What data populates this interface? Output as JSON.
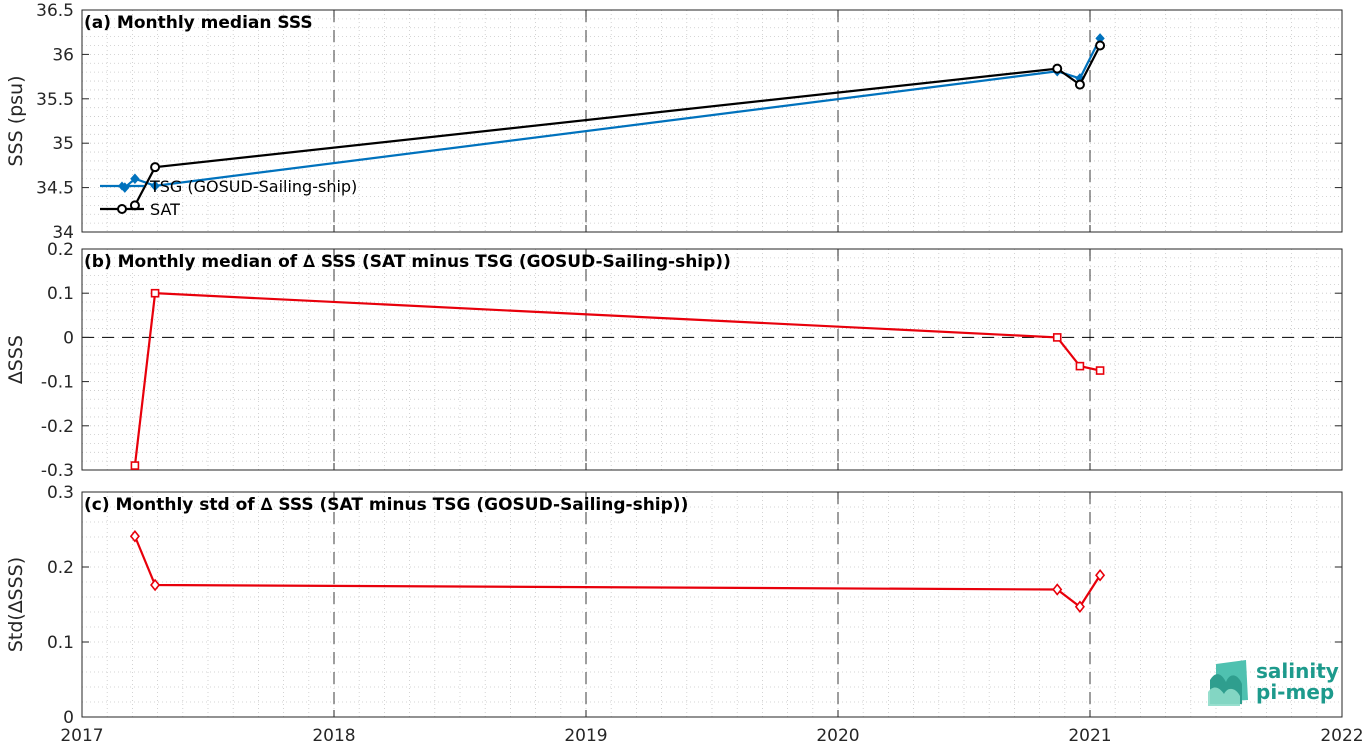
{
  "chart_data": [
    {
      "type": "line",
      "title": "(a) Monthly median SSS",
      "ylabel": "SSS (psu)",
      "xlim": [
        2017,
        2022
      ],
      "ylim": [
        34,
        36.5
      ],
      "yticks": [
        34,
        34.5,
        35,
        35.5,
        36,
        36.5
      ],
      "ytick_labels": [
        "34",
        "34.5",
        "35",
        "35.5",
        "36",
        "36.5"
      ],
      "grid": true,
      "legend": "middle-left",
      "series": [
        {
          "name": "TSG (GOSUD-Sailing-ship)",
          "color": "#0072bd",
          "marker": "filled-diamond",
          "x": [
            2017.17,
            2017.21,
            2017.29,
            2020.87,
            2020.96,
            2021.04
          ],
          "y": [
            34.5,
            34.6,
            34.52,
            35.81,
            35.73,
            36.18
          ]
        },
        {
          "name": "SAT",
          "color": "#000000",
          "marker": "open-circle",
          "x": [
            2017.21,
            2017.29,
            2020.87,
            2020.96,
            2021.04
          ],
          "y": [
            34.3,
            34.73,
            35.84,
            35.66,
            36.1
          ]
        }
      ]
    },
    {
      "type": "line",
      "title": "(b) Monthly median of ∆ SSS (SAT minus TSG (GOSUD-Sailing-ship))",
      "ylabel": "∆SSS",
      "xlim": [
        2017,
        2022
      ],
      "ylim": [
        -0.3,
        0.2
      ],
      "yticks": [
        -0.3,
        -0.2,
        -0.1,
        0,
        0.1,
        0.2
      ],
      "ytick_labels": [
        "-0.3",
        "-0.2",
        "-0.1",
        "0",
        "0.1",
        "0.2"
      ],
      "grid": true,
      "zero_line": true,
      "series": [
        {
          "color": "#e8000b",
          "marker": "open-square",
          "x": [
            2017.21,
            2017.29,
            2020.87,
            2020.96,
            2021.04
          ],
          "y": [
            -0.29,
            0.1,
            0.0,
            -0.065,
            -0.075
          ]
        }
      ]
    },
    {
      "type": "line",
      "title": "(c) Monthly std of ∆ SSS (SAT minus TSG (GOSUD-Sailing-ship))",
      "ylabel": "Std(∆SSS)",
      "xlim": [
        2017,
        2022
      ],
      "ylim": [
        0,
        0.3
      ],
      "yticks": [
        0,
        0.1,
        0.2,
        0.3
      ],
      "ytick_labels": [
        "0",
        "0.1",
        "0.2",
        "0.3"
      ],
      "xticks": [
        2017,
        2018,
        2019,
        2020,
        2021,
        2022
      ],
      "xtick_labels": [
        "2017",
        "2018",
        "2019",
        "2020",
        "2021",
        "2022"
      ],
      "grid": true,
      "series": [
        {
          "color": "#e8000b",
          "marker": "open-diamond",
          "x": [
            2017.21,
            2017.29,
            2020.87,
            2020.96,
            2021.04
          ],
          "y": [
            0.241,
            0.176,
            0.17,
            0.147,
            0.189
          ]
        }
      ]
    }
  ],
  "logo": {
    "line1": "salinity",
    "line2": "pi-mep",
    "color": "#1d9a8c"
  }
}
